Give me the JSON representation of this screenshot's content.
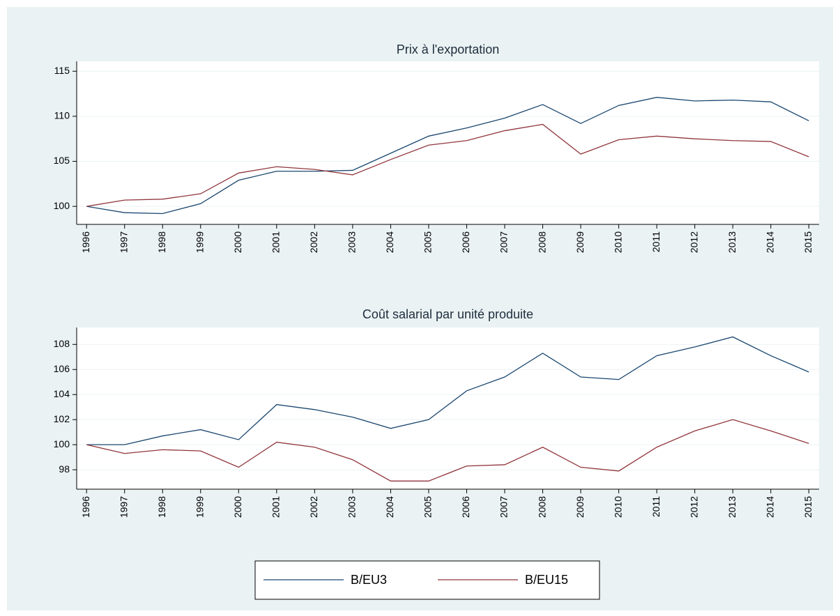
{
  "chart_data": [
    {
      "type": "line",
      "title": "Prix à l'exportation",
      "x": [
        1996,
        1997,
        1998,
        1999,
        2000,
        2001,
        2002,
        2003,
        2004,
        2005,
        2006,
        2007,
        2008,
        2009,
        2010,
        2011,
        2012,
        2013,
        2014,
        2015
      ],
      "xlim": [
        1995.74,
        2015.27
      ],
      "xticks": [
        1996,
        1997,
        1998,
        1999,
        2000,
        2001,
        2002,
        2003,
        2004,
        2005,
        2006,
        2007,
        2008,
        2009,
        2010,
        2011,
        2012,
        2013,
        2014,
        2015
      ],
      "ylim": [
        98,
        116.1
      ],
      "yticks": [
        100,
        105,
        110,
        115
      ],
      "grid": true,
      "legend": "bottom",
      "series": [
        {
          "name": "B/EU3",
          "color": "#1a476f",
          "values": [
            100,
            99.3,
            99.2,
            100.3,
            102.9,
            103.9,
            103.9,
            104,
            105.9,
            107.8,
            108.7,
            109.8,
            111.3,
            109.2,
            111.2,
            112.1,
            111.7,
            111.8,
            111.6,
            109.5
          ]
        },
        {
          "name": "B/EU15",
          "color": "#90353b",
          "values": [
            100,
            100.7,
            100.8,
            101.4,
            103.7,
            104.4,
            104.1,
            103.5,
            105.2,
            106.8,
            107.3,
            108.4,
            109.1,
            105.8,
            107.4,
            107.8,
            107.5,
            107.3,
            107.2,
            105.5
          ]
        }
      ]
    },
    {
      "type": "line",
      "title": "Coût salarial par unité produite",
      "x": [
        1996,
        1997,
        1998,
        1999,
        2000,
        2001,
        2002,
        2003,
        2004,
        2005,
        2006,
        2007,
        2008,
        2009,
        2010,
        2011,
        2012,
        2013,
        2014,
        2015
      ],
      "xlim": [
        1995.74,
        2015.27
      ],
      "xticks": [
        1996,
        1997,
        1998,
        1999,
        2000,
        2001,
        2002,
        2003,
        2004,
        2005,
        2006,
        2007,
        2008,
        2009,
        2010,
        2011,
        2012,
        2013,
        2014,
        2015
      ],
      "ylim": [
        96.45,
        109.35
      ],
      "yticks": [
        98,
        100,
        102,
        104,
        106,
        108
      ],
      "grid": true,
      "series": [
        {
          "color": "#1a476f",
          "values": [
            100,
            100,
            100.7,
            101.2,
            100.4,
            103.2,
            102.8,
            102.2,
            101.3,
            102,
            104.3,
            105.4,
            107.3,
            105.4,
            105.2,
            107.1,
            107.8,
            108.6,
            107.1,
            105.8
          ]
        },
        {
          "color": "#90353b",
          "values": [
            100,
            99.3,
            99.6,
            99.5,
            98.2,
            100.2,
            99.8,
            98.8,
            97.1,
            97.1,
            98.3,
            98.4,
            99.8,
            98.2,
            97.9,
            99.8,
            101.1,
            102,
            101.1,
            100.1
          ]
        }
      ]
    }
  ]
}
